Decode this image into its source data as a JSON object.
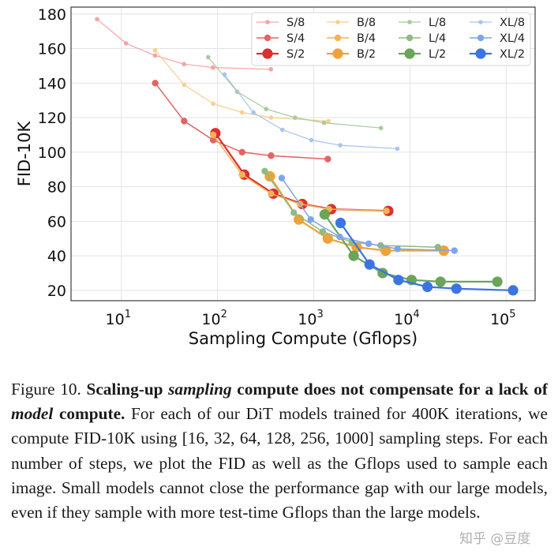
{
  "chart_data": {
    "type": "line",
    "xscale": "log",
    "xlim": [
      3,
      200000
    ],
    "ylim": [
      14,
      184
    ],
    "xlabel": "Sampling Compute (Gflops)",
    "ylabel": "FID-10K",
    "yticks": [
      "20",
      "40",
      "60",
      "80",
      "100",
      "120",
      "140",
      "160",
      "180"
    ],
    "xtick_base": "10",
    "xtick_exponents": [
      "1",
      "2",
      "3",
      "4",
      "5"
    ],
    "legend_position": "top-right",
    "series": [
      {
        "name": "S/8",
        "color": "#f5a3a3",
        "size": "small",
        "x": [
          5.6,
          11.2,
          22.4,
          44.8,
          89.6,
          358
        ],
        "y": [
          177,
          163,
          156,
          151,
          149,
          148
        ]
      },
      {
        "name": "S/4",
        "color": "#e56363",
        "size": "medium",
        "x": [
          22.5,
          45,
          90,
          180,
          360,
          1400
        ],
        "y": [
          140,
          118,
          107,
          100,
          98,
          96
        ]
      },
      {
        "name": "S/2",
        "color": "#dc2f2f",
        "size": "large",
        "x": [
          95,
          190,
          380,
          760,
          1520,
          5950
        ],
        "y": [
          111,
          87,
          76,
          70,
          67,
          66
        ]
      },
      {
        "name": "B/8",
        "color": "#f8cf8e",
        "size": "small",
        "x": [
          22.5,
          45,
          90,
          180,
          360,
          1420
        ],
        "y": [
          159,
          139,
          128,
          123,
          120,
          118
        ]
      },
      {
        "name": "B/4",
        "color": "#f2b357",
        "size": "medium",
        "x": [
          90,
          180,
          360,
          720,
          1440,
          5700
        ],
        "y": [
          110,
          87,
          76,
          70,
          67,
          66
        ]
      },
      {
        "name": "B/2",
        "color": "#eea23a",
        "size": "large",
        "x": [
          350,
          700,
          1400,
          2800,
          5600,
          22500
        ],
        "y": [
          86,
          61,
          50,
          45,
          43,
          43
        ]
      },
      {
        "name": "L/8",
        "color": "#a8c99c",
        "size": "small",
        "x": [
          80,
          160,
          320,
          640,
          1280,
          5000
        ],
        "y": [
          155,
          135,
          125,
          120,
          117,
          114
        ]
      },
      {
        "name": "L/4",
        "color": "#8fbb80",
        "size": "medium",
        "x": [
          310,
          620,
          1240,
          2480,
          4960,
          19500
        ],
        "y": [
          89,
          65,
          54,
          48,
          46,
          45
        ]
      },
      {
        "name": "L/2",
        "color": "#6aa55a",
        "size": "large",
        "x": [
          1300,
          2600,
          5200,
          10400,
          20800,
          81000
        ],
        "y": [
          64,
          40,
          30,
          26,
          25,
          25
        ]
      },
      {
        "name": "XL/8",
        "color": "#a9c4ee",
        "size": "small",
        "x": [
          118,
          236,
          472,
          944,
          1888,
          7400
        ],
        "y": [
          145,
          123,
          113,
          107,
          104,
          102
        ]
      },
      {
        "name": "XL/4",
        "color": "#7ea5eb",
        "size": "medium",
        "x": [
          465,
          930,
          1860,
          3720,
          7440,
          29000
        ],
        "y": [
          85,
          61,
          51,
          47,
          44,
          43
        ]
      },
      {
        "name": "XL/2",
        "color": "#3c74e2",
        "size": "large",
        "x": [
          1900,
          3800,
          7600,
          15200,
          30400,
          118000
        ],
        "y": [
          59,
          35,
          26,
          22,
          21,
          20
        ]
      }
    ]
  },
  "caption": {
    "lead": "Figure 10. ",
    "bold1": "Scaling-up ",
    "bold_italic1": "sampling",
    "bold2": " compute does not compensate for a lack of ",
    "bold_italic2": "model",
    "bold3": " compute.",
    "rest": " For each of our DiT models trained for 400K iterations, we compute FID-10K using [16, 32, 64, 128, 256, 1000] sampling steps. For each number of steps, we plot the FID as well as the Gflops used to sample each image. Small models cannot close the performance gap with our large models, even if they sample with more test-time Gflops than the large models."
  },
  "watermark": "知乎 @豆度"
}
